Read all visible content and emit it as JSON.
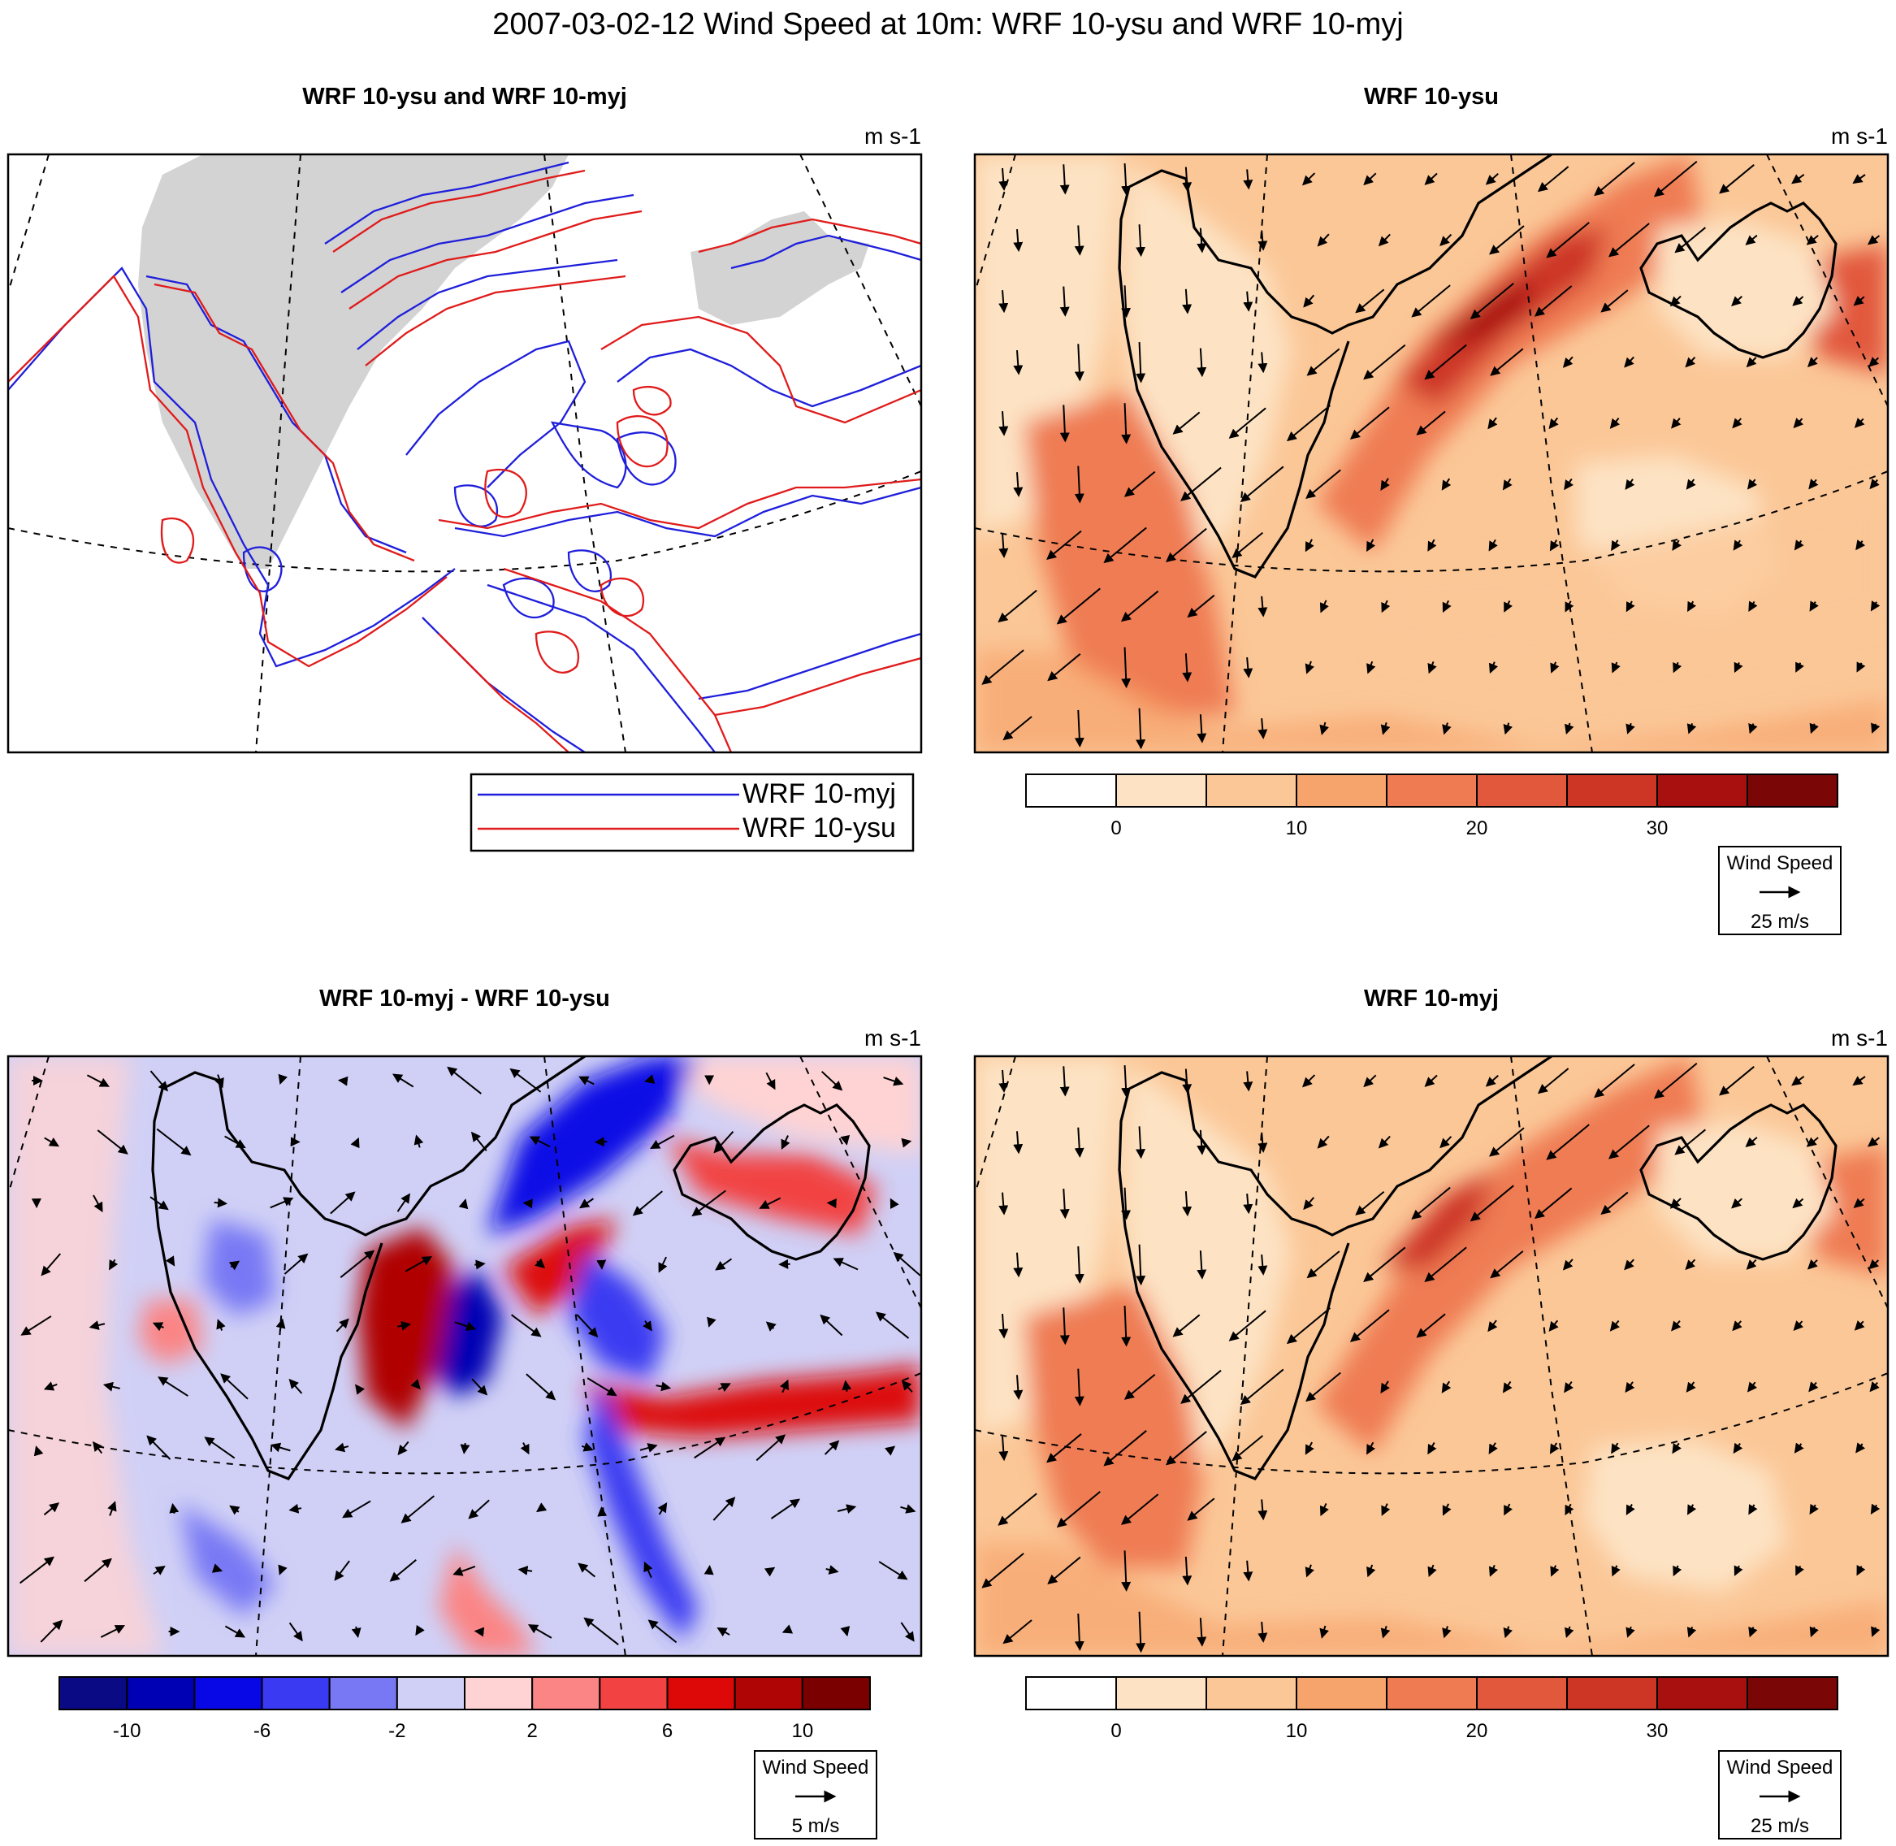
{
  "main_title": "2007-03-02-12 Wind Speed at 10m: WRF 10-ysu and WRF 10-myj",
  "units": "m s-1",
  "panels": {
    "contour": {
      "title": "WRF 10-ysu and WRF 10-myj",
      "legend": [
        {
          "label": "WRF 10-myj",
          "color": "#1f1fdb"
        },
        {
          "label": "WRF 10-ysu",
          "color": "#e01b1b"
        }
      ]
    },
    "ysu": {
      "title": "WRF 10-ysu"
    },
    "diff": {
      "title": "WRF 10-myj - WRF 10-ysu"
    },
    "myj": {
      "title": "WRF 10-myj"
    }
  },
  "speed_colorbar": {
    "colors": [
      "#ffffff",
      "#fde3c4",
      "#fbc797",
      "#f7a46c",
      "#ef7b52",
      "#e2583c",
      "#cd3525",
      "#a81010",
      "#7a0606"
    ],
    "tick_labels": [
      "0",
      "10",
      "20",
      "30"
    ]
  },
  "diff_colorbar": {
    "colors": [
      "#0a0a85",
      "#0000b4",
      "#0808e6",
      "#3a3af2",
      "#7878f5",
      "#d0d0f6",
      "#ffd3d3",
      "#fb8484",
      "#f24242",
      "#dd0808",
      "#b00505",
      "#7a0000"
    ],
    "tick_labels": [
      "-10",
      "-6",
      "-2",
      "2",
      "6",
      "10"
    ]
  },
  "vector_keys": {
    "ysu": {
      "title": "Wind Speed",
      "label": "25 m/s"
    },
    "myj": {
      "title": "Wind Speed",
      "label": "25 m/s"
    },
    "diff": {
      "title": "Wind Speed",
      "label": "5 m/s"
    }
  },
  "colors": {
    "land": "#d3d3d3",
    "coast": "#000000"
  }
}
